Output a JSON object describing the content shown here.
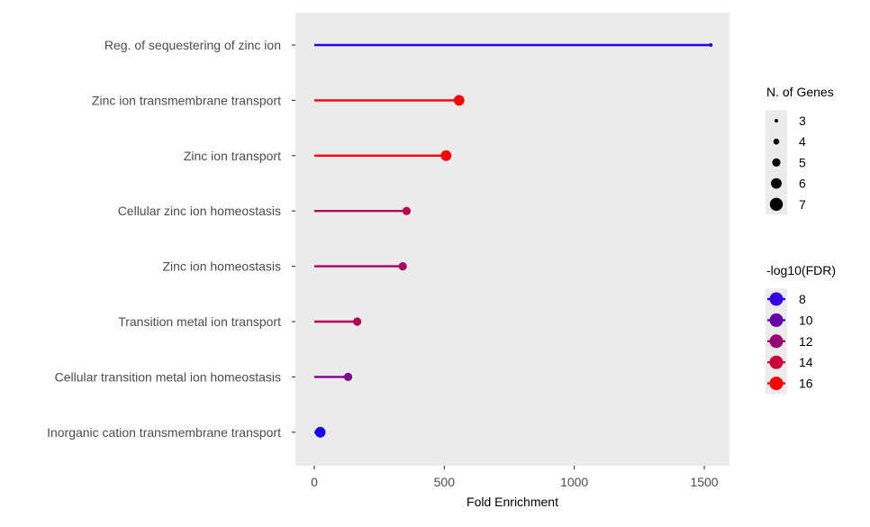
{
  "chart_data": {
    "type": "lollipop",
    "xlabel": "Fold Enrichment",
    "ylabel": "",
    "title": "",
    "xlim": [
      -75,
      1600
    ],
    "xticks": [
      0,
      500,
      1000,
      1500
    ],
    "categories": [
      "Reg. of sequestering of zinc ion",
      "Zinc ion transmembrane transport",
      "Zinc ion transport",
      "Cellular zinc ion homeostasis",
      "Zinc ion homeostasis",
      "Transition metal ion transport",
      "Cellular transition metal ion homeostasis",
      "Inorganic cation transmembrane transport"
    ],
    "fold_enrichment": [
      1525,
      557,
      507,
      355,
      340,
      165,
      130,
      23
    ],
    "n_genes": [
      3,
      6,
      6,
      5,
      5,
      5,
      5,
      6
    ],
    "neg_log10_fdr": [
      7.5,
      16,
      16,
      13,
      12.5,
      13,
      11,
      7
    ],
    "color_domain": [
      7,
      16
    ],
    "color_low": "#1a00ff",
    "color_high": "#ff0000",
    "grid": false,
    "panel_background": "#ebebeb",
    "legends": {
      "size": {
        "title": "N. of Genes",
        "entries": [
          "3",
          "4",
          "5",
          "6",
          "7"
        ],
        "values": [
          3,
          4,
          5,
          6,
          7
        ]
      },
      "color": {
        "title": "-log10(FDR)",
        "entries": [
          "8",
          "10",
          "12",
          "14",
          "16"
        ],
        "values": [
          8,
          10,
          12,
          14,
          16
        ]
      },
      "placement": "right"
    }
  }
}
